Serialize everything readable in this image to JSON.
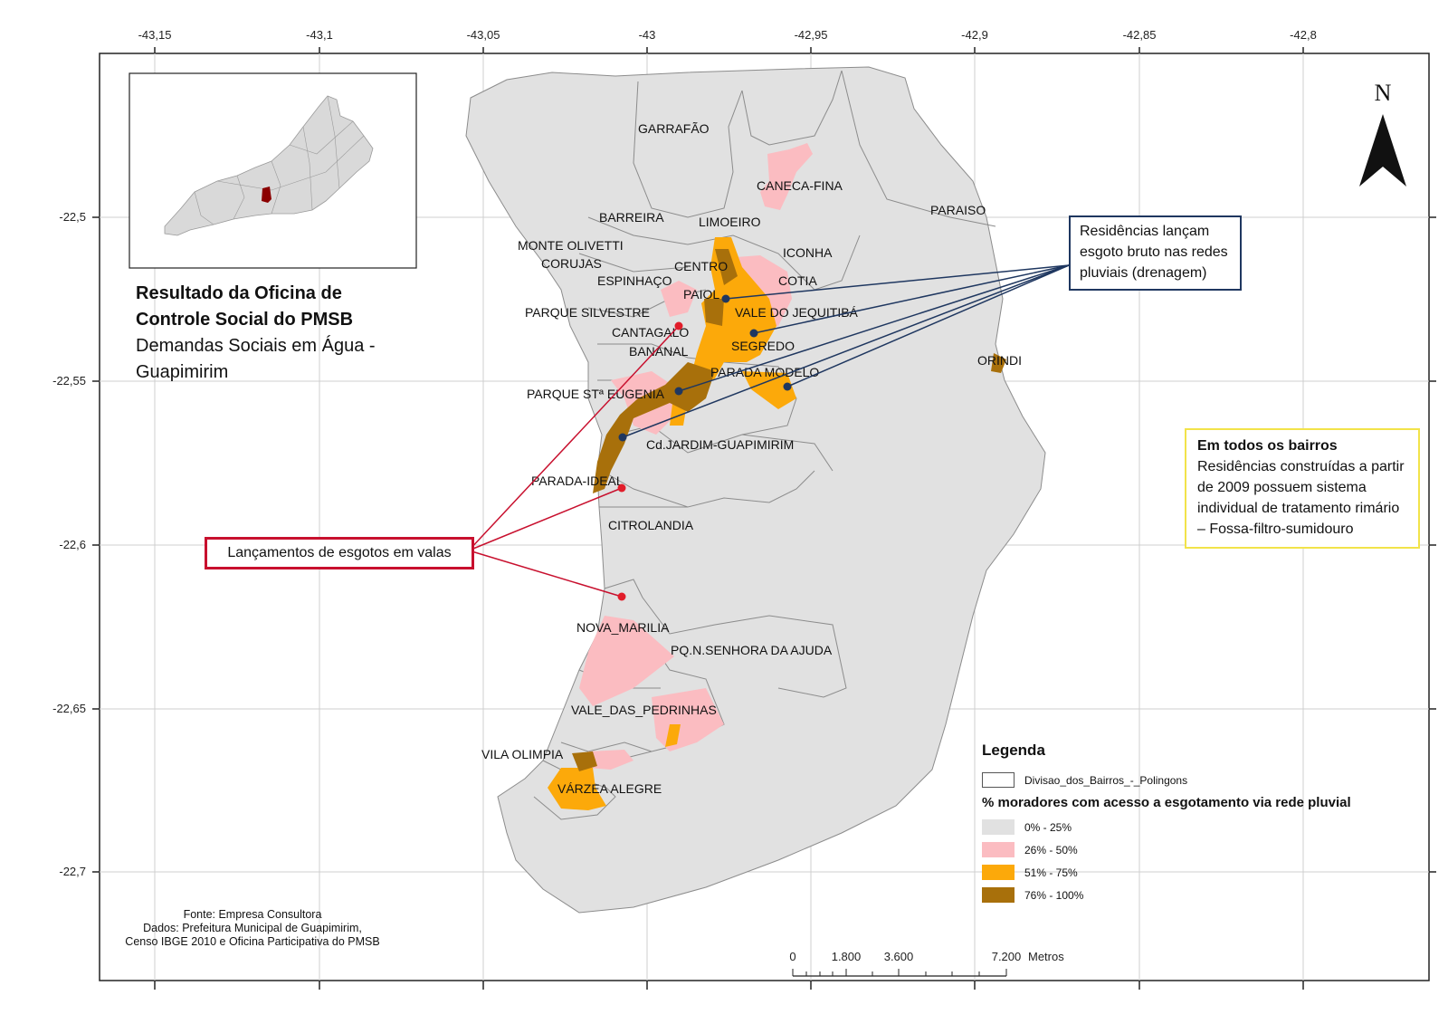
{
  "axes": {
    "x_ticks": [
      "-43,15",
      "-43,1",
      "-43,05",
      "-43",
      "-42,95",
      "-42,9",
      "-42,85",
      "-42,8"
    ],
    "y_ticks": [
      "-22,5",
      "-22,55",
      "-22,6",
      "-22,65",
      "-22,7"
    ]
  },
  "title": {
    "line1": "Resultado da Oficina de",
    "line2": "Controle Social do PMSB",
    "line3": "Demandas Sociais em Água -",
    "line4": "Guapimirim"
  },
  "neighborhoods": [
    "GARRAFÃO",
    "CANECA-FINA",
    "PARAISO",
    "BARREIRA",
    "LIMOEIRO",
    "MONTE OLIVETTI",
    "ICONHA",
    "CORUJAS",
    "CENTRO",
    "ESPINHAÇO",
    "COTIA",
    "PAIOL",
    "PARQUE SILVESTRE",
    "VALE DO JEQUITIBÁ",
    "CANTAGALO",
    "SEGREDO",
    "BANANAL",
    "ORINDI",
    "PARADA MODELO",
    "PARQUE STª EUGENIA",
    "Cd.JARDIM-GUAPIMIRIM",
    "PARADA-IDEAL",
    "CITROLANDIA",
    "NOVA_MARILIA",
    "PQ.N.SENHORA DA AJUDA",
    "VALE_DAS_PEDRINHAS",
    "VILA OLIMPIA",
    "VÁRZEA ALEGRE"
  ],
  "callouts": {
    "blue": "Residências lançam esgoto bruto nas redes pluviais (drenagem)",
    "red": "Lançamentos de esgotos em valas",
    "yellow_title": "Em todos os bairros",
    "yellow_body": "Residências construídas a partir de 2009 possuem sistema individual de tratamento rimário – Fossa-filtro-sumidouro"
  },
  "legend": {
    "title": "Legenda",
    "boundary_label": "Divisao_dos_Bairros_-_Polingons",
    "subtitle": "% moradores com acesso a esgotamento via rede pluvial",
    "classes": [
      {
        "label": "0% - 25%",
        "color": "#e1e1e1"
      },
      {
        "label": "26% - 50%",
        "color": "#fbbcc1"
      },
      {
        "label": "51% - 75%",
        "color": "#fca90a"
      },
      {
        "label": "76% - 100%",
        "color": "#a8700b"
      }
    ]
  },
  "north_arrow": "N",
  "scale_bar": {
    "labels": [
      "0",
      "1.800",
      "3.600",
      "7.200"
    ],
    "unit": "Metros"
  },
  "source": {
    "line1": "Fonte: Empresa Consultora",
    "line2": "Dados:  Prefeitura Municipal de Guapimirim,",
    "line3": "Censo IBGE 2010 e Oficina Participativa do PMSB"
  },
  "colors": {
    "callout_blue": "#1f3760",
    "callout_red": "#c8102e",
    "callout_yellow": "#f2e34a",
    "inset_highlight": "#8b0000"
  }
}
